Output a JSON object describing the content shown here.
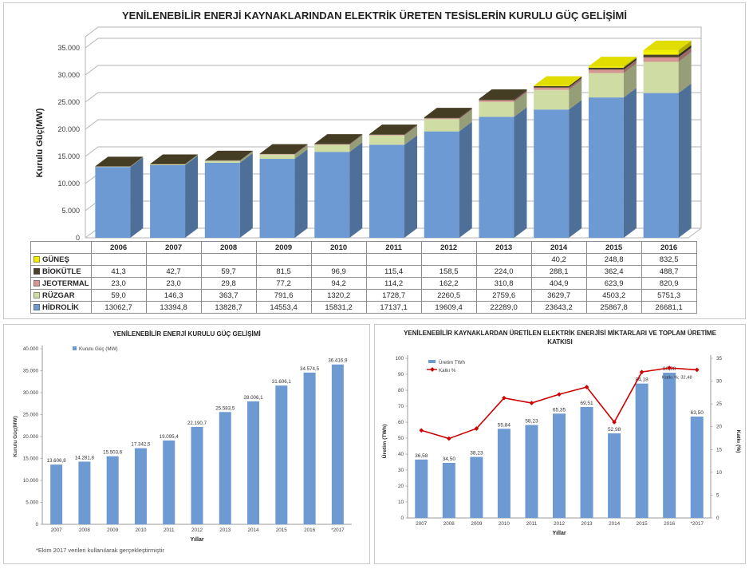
{
  "colors": {
    "panel_border": "#c9c9c9",
    "grid": "#b3b3b3",
    "axis": "#9b9b9b",
    "text": "#404040",
    "bar_blue": "#6d9ad2",
    "line_red": "#cc0000",
    "table_border": "#8c8c8c"
  },
  "chart_data": [
    {
      "id": "kurulu-guc-kaynak-bazli",
      "type": "bar",
      "variant": "stacked-3d",
      "title": "YENİLENEBİLİR ENERJİ KAYNAKLARINDAN ELEKTRİK ÜRETEN TESİSLERİN KURULU GÜÇ GELİŞİMİ",
      "ylabel": "Kurulu Güç(MW)",
      "ylim": [
        0,
        35000
      ],
      "ytick_labels": [
        "0",
        "5.000",
        "10.000",
        "15.000",
        "20.000",
        "25.000",
        "30.000",
        "35.000"
      ],
      "legend_position": "table-below",
      "grid": true,
      "categories": [
        "2006",
        "2007",
        "2008",
        "2009",
        "2010",
        "2011",
        "2012",
        "2013",
        "2014",
        "2015",
        "2016"
      ],
      "series": [
        {
          "name": "GÜNEŞ",
          "color": "#f2ee00",
          "values": [
            0,
            0,
            0,
            0,
            0,
            0,
            0,
            0,
            40.2,
            248.8,
            832.5
          ],
          "labels": [
            "",
            "",
            "",
            "",
            "",
            "",
            "",
            "",
            "40,2",
            "248,8",
            "832,5"
          ]
        },
        {
          "name": "BİOKÜTLE",
          "color": "#4a4226",
          "values": [
            41.3,
            42.7,
            59.7,
            81.5,
            96.9,
            115.4,
            158.5,
            224.0,
            288.1,
            362.4,
            488.7
          ],
          "labels": [
            "41,3",
            "42,7",
            "59,7",
            "81,5",
            "96,9",
            "115,4",
            "158,5",
            "224,0",
            "288,1",
            "362,4",
            "488,7"
          ]
        },
        {
          "name": "JEOTERMAL",
          "color": "#d59694",
          "values": [
            23.0,
            23.0,
            29.8,
            77.2,
            94.2,
            114.2,
            162.2,
            310.8,
            404.9,
            623.9,
            820.9
          ],
          "labels": [
            "23,0",
            "23,0",
            "29,8",
            "77,2",
            "94,2",
            "114,2",
            "162,2",
            "310,8",
            "404,9",
            "623,9",
            "820,9"
          ]
        },
        {
          "name": "RÜZGAR",
          "color": "#cfdca4",
          "values": [
            59.0,
            146.3,
            363.7,
            791.6,
            1320.2,
            1728.7,
            2260.5,
            2759.6,
            3629.7,
            4503.2,
            5751.3
          ],
          "labels": [
            "59,0",
            "146,3",
            "363,7",
            "791,6",
            "1320,2",
            "1728,7",
            "2260,5",
            "2759,6",
            "3629,7",
            "4503,2",
            "5751,3"
          ]
        },
        {
          "name": "HİDROLİK",
          "color": "#6d9ad2",
          "values": [
            13062.7,
            13394.8,
            13828.7,
            14553.4,
            15831.2,
            17137.1,
            19609.4,
            22289.0,
            23643.2,
            25867.8,
            26681.1
          ],
          "labels": [
            "13062,7",
            "13394,8",
            "13828,7",
            "14553,4",
            "15831,2",
            "17137,1",
            "19609,4",
            "22289,0",
            "23643,2",
            "25867,8",
            "26681,1"
          ]
        }
      ]
    },
    {
      "id": "kurulu-guc-toplam",
      "type": "bar",
      "title": "YENİLENEBİLİR ENERJİ KURULU GÜÇ GELİŞİMİ",
      "legend": [
        "Kurulu Güç (MW)"
      ],
      "ylabel": "Kurulu Güç(MW)",
      "xlabel": "Yıllar",
      "ylim": [
        0,
        40000
      ],
      "grid": false,
      "ytick_labels": [
        "0",
        "5.000",
        "10.000",
        "15.000",
        "20.000",
        "25.000",
        "30.000",
        "35.000",
        "40.000"
      ],
      "categories": [
        "2007",
        "2008",
        "2009",
        "2010",
        "2011",
        "2012",
        "2013",
        "2014",
        "2015",
        "2016",
        "*2017"
      ],
      "values": [
        13606.8,
        14281.8,
        15503.6,
        17342.5,
        19095.4,
        22190.7,
        25583.5,
        28006.1,
        31606.1,
        34574.5,
        36416.9
      ],
      "value_labels": [
        "13.606,8",
        "14.281,8",
        "15.503,6",
        "17.342,5",
        "19.095,4",
        "22.190,7",
        "25.583,5",
        "28.006,1",
        "31.606,1",
        "34.574,5",
        "36.416,9"
      ],
      "footnote": "*Ekim 2017 verileri kullanılarak gerçekleştirmiştir"
    },
    {
      "id": "uretim-ve-katki",
      "type": "bar-line",
      "title": "YENİLENEBİLİR KAYNAKLARDAN ÜRETİLEN ELEKTRİK ENERJİSİ MİKTARLARI VE TOPLAM ÜRETİME KATKISI",
      "legend": [
        "Üretim TWh",
        "Katkı %"
      ],
      "ylabel_left": "Üretim (TWh)",
      "ylabel_right": "Katkı (%)",
      "xlabel": "Yıllar",
      "ylim_left": [
        0,
        100
      ],
      "ytick_labels_left": [
        "0",
        "10",
        "20",
        "30",
        "40",
        "50",
        "60",
        "70",
        "80",
        "90",
        "100"
      ],
      "ylim_right": [
        0,
        35
      ],
      "ytick_labels_right": [
        "0",
        "5",
        "10",
        "15",
        "20",
        "25",
        "30",
        "35"
      ],
      "grid": false,
      "categories": [
        "2007",
        "2008",
        "2009",
        "2010",
        "2011",
        "2012",
        "2013",
        "2014",
        "2015",
        "2016",
        "*2017"
      ],
      "bar_series_name": "Üretim TWh",
      "bar_values": [
        36.58,
        34.5,
        38.23,
        55.84,
        58.23,
        65.35,
        69.51,
        52.98,
        84.18,
        90.98,
        63.5
      ],
      "bar_labels": [
        "36,58",
        "34,50",
        "38,23",
        "55,84",
        "58,23",
        "65,35",
        "69,51",
        "52,98",
        "84,18",
        "90,98",
        "63,50"
      ],
      "line_series_name": "Katkı %",
      "line_values": [
        19.2,
        17.4,
        19.6,
        26.3,
        25.2,
        27.1,
        28.7,
        21.0,
        32.0,
        32.9,
        32.48
      ],
      "annotation": "Katkı %; 32,48"
    }
  ]
}
